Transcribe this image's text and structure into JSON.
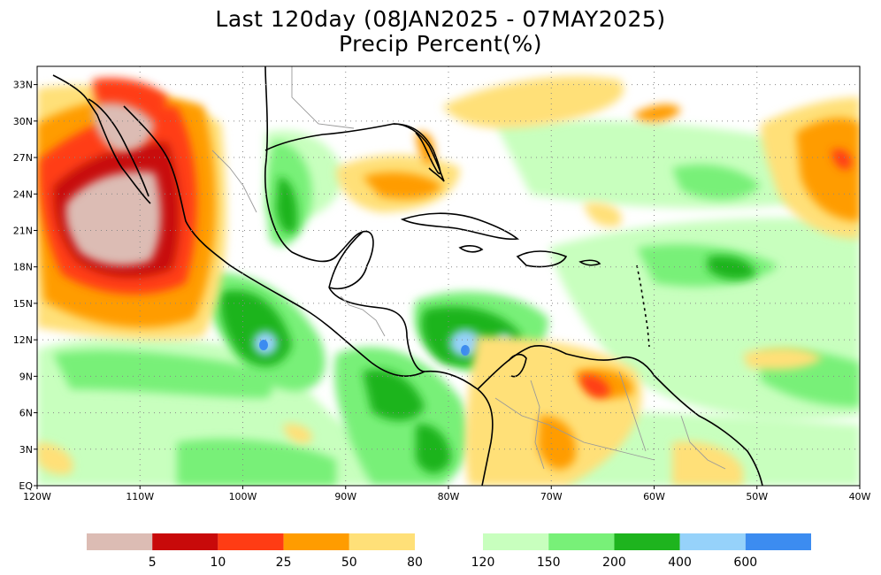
{
  "title": {
    "line1": "Last 120day (08JAN2025 - 07MAY2025)",
    "line2": "Precip Percent(%)"
  },
  "map": {
    "lon_range": [
      -120,
      -40
    ],
    "lat_range": [
      0,
      34.5
    ],
    "lat_ticks": [
      {
        "value": 33,
        "label": "33N"
      },
      {
        "value": 30,
        "label": "30N"
      },
      {
        "value": 27,
        "label": "27N"
      },
      {
        "value": 24,
        "label": "24N"
      },
      {
        "value": 21,
        "label": "21N"
      },
      {
        "value": 18,
        "label": "18N"
      },
      {
        "value": 15,
        "label": "15N"
      },
      {
        "value": 12,
        "label": "12N"
      },
      {
        "value": 9,
        "label": "9N"
      },
      {
        "value": 6,
        "label": "6N"
      },
      {
        "value": 3,
        "label": "3N"
      },
      {
        "value": 0,
        "label": "EQ"
      }
    ],
    "lon_ticks": [
      {
        "value": -120,
        "label": "120W"
      },
      {
        "value": -110,
        "label": "110W"
      },
      {
        "value": -100,
        "label": "100W"
      },
      {
        "value": -90,
        "label": "90W"
      },
      {
        "value": -80,
        "label": "80W"
      },
      {
        "value": -70,
        "label": "70W"
      },
      {
        "value": -60,
        "label": "60W"
      },
      {
        "value": -50,
        "label": "50W"
      },
      {
        "value": -40,
        "label": "40W"
      }
    ],
    "grid": "dotted"
  },
  "colorbar": {
    "dry": [
      {
        "color": "#dcbcb4"
      },
      {
        "color": "#c80a0a"
      },
      {
        "color": "#ff3c14"
      },
      {
        "color": "#ff9c00"
      },
      {
        "color": "#ffe078"
      }
    ],
    "dry_labels": [
      "5",
      "10",
      "25",
      "50",
      "80"
    ],
    "wet": [
      {
        "color": "#c8ffbe"
      },
      {
        "color": "#78f078"
      },
      {
        "color": "#1eb41e"
      },
      {
        "color": "#96d2fa"
      },
      {
        "color": "#3c8cf0"
      }
    ],
    "wet_labels": [
      "120",
      "150",
      "200",
      "400",
      "600"
    ]
  }
}
